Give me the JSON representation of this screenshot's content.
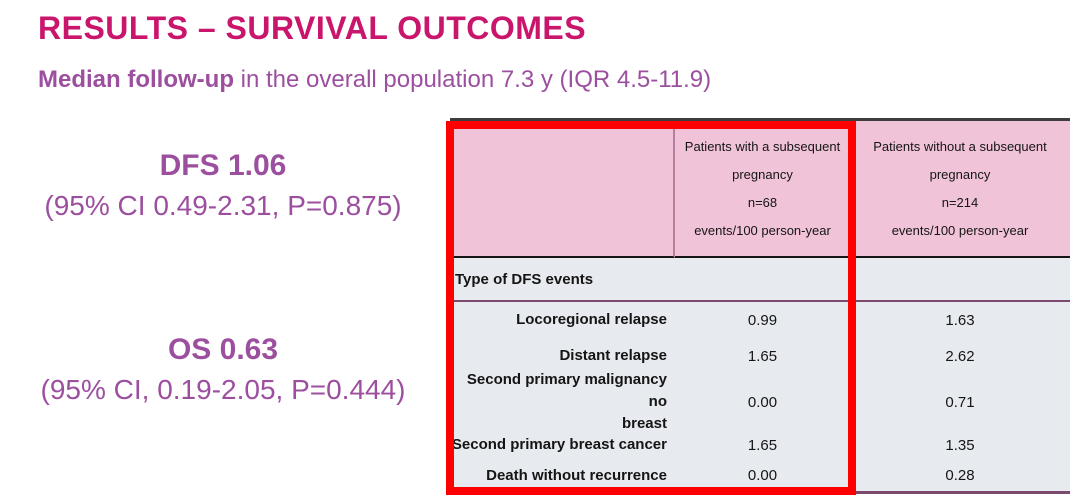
{
  "header": {
    "title": "RESULTS – SURVIVAL OUTCOMES",
    "subtitle_emphasis": "Median follow-up",
    "subtitle_rest": " in the overall population 7.3 y (IQR 4.5-11.9)"
  },
  "stats": {
    "dfs": {
      "value": "DFS 1.06",
      "ci": "(95% CI 0.49-2.31, P=0.875)"
    },
    "os": {
      "value": "OS 0.63",
      "ci": "(95% CI, 0.19-2.05, P=0.444)"
    }
  },
  "table": {
    "columns": {
      "with_pregnancy": "Patients with a subsequent\npregnancy\nn=68\nevents/100 person-year",
      "without_pregnancy": "Patients without a subsequent\npregnancy\nn=214\nevents/100 person-year"
    },
    "section_header": "Type of DFS events",
    "rows": [
      {
        "label": "Locoregional relapse",
        "with": "0.99",
        "without": "1.63"
      },
      {
        "label": "Distant relapse",
        "with": "1.65",
        "without": "2.62"
      },
      {
        "label": "Second primary malignancy no\nbreast",
        "with": "0.00",
        "without": "0.71"
      },
      {
        "label": "Second primary breast cancer",
        "with": "1.65",
        "without": "1.35"
      },
      {
        "label": "Death without recurrence",
        "with": "0.00",
        "without": "0.28"
      }
    ]
  },
  "colors": {
    "title_text": "#C9156B",
    "purple_text": "#9C4F9F",
    "header_bg": "#F0C3D8",
    "body_bg": "#E7EAEE",
    "table_line": "#7D4A6E",
    "red_highlight": "#FF0000"
  }
}
